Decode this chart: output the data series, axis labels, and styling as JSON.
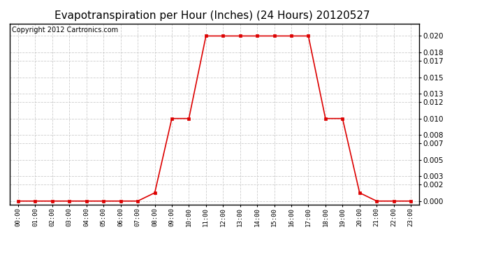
{
  "title": "Evapotranspiration per Hour (Inches) (24 Hours) 20120527",
  "copyright": "Copyright 2012 Cartronics.com",
  "hours": [
    0,
    1,
    2,
    3,
    4,
    5,
    6,
    7,
    8,
    9,
    10,
    11,
    12,
    13,
    14,
    15,
    16,
    17,
    18,
    19,
    20,
    21,
    22,
    23
  ],
  "values": [
    0.0,
    0.0,
    0.0,
    0.0,
    0.0,
    0.0,
    0.0,
    0.0,
    0.001,
    0.01,
    0.01,
    0.02,
    0.02,
    0.02,
    0.02,
    0.02,
    0.02,
    0.02,
    0.01,
    0.01,
    0.001,
    0.0,
    0.0,
    0.0
  ],
  "line_color": "#dd0000",
  "marker": "s",
  "marker_size": 3.5,
  "background_color": "#ffffff",
  "grid_color": "#cccccc",
  "title_fontsize": 11,
  "copyright_fontsize": 7,
  "tick_labels": [
    "00:00",
    "01:00",
    "02:00",
    "03:00",
    "04:00",
    "05:00",
    "06:00",
    "07:00",
    "08:00",
    "09:00",
    "10:00",
    "11:00",
    "12:00",
    "13:00",
    "14:00",
    "15:00",
    "16:00",
    "17:00",
    "18:00",
    "19:00",
    "20:00",
    "21:00",
    "22:00",
    "23:00"
  ],
  "yticks": [
    0.0,
    0.002,
    0.003,
    0.005,
    0.007,
    0.008,
    0.01,
    0.012,
    0.013,
    0.015,
    0.017,
    0.018,
    0.02
  ],
  "ylim": [
    -0.0004,
    0.0215
  ],
  "xlim": [
    -0.5,
    23.5
  ]
}
